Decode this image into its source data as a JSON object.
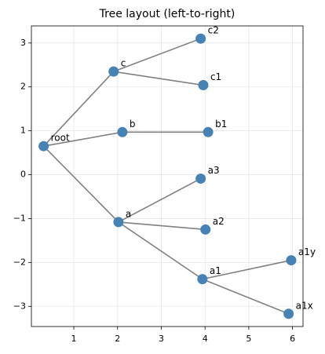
{
  "chart_data": {
    "type": "scatter",
    "title": "Tree layout (left-to-right)",
    "labels": [
      "root",
      "c",
      "c2",
      "c1",
      "b",
      "b1",
      "a3",
      "a",
      "a2",
      "a1",
      "a1y",
      "a1x"
    ],
    "x": [
      0.31,
      1.91,
      3.9,
      3.96,
      2.11,
      4.07,
      3.9,
      2.02,
      4.01,
      3.94,
      5.97,
      5.91
    ],
    "values": [
      0.65,
      2.35,
      3.1,
      2.04,
      0.97,
      0.97,
      -0.09,
      -1.08,
      -1.25,
      -2.38,
      -1.95,
      -3.17
    ],
    "edges": [
      [
        "root",
        "c"
      ],
      [
        "root",
        "b"
      ],
      [
        "root",
        "a"
      ],
      [
        "c",
        "c2"
      ],
      [
        "c",
        "c1"
      ],
      [
        "b",
        "b1"
      ],
      [
        "a",
        "a3"
      ],
      [
        "a",
        "a2"
      ],
      [
        "a",
        "a1"
      ],
      [
        "a1",
        "a1y"
      ],
      [
        "a1",
        "a1x"
      ]
    ],
    "color": "#4682b4",
    "edge_color": "#808080",
    "xlim": [
      0.03,
      6.24
    ],
    "ylim": [
      -3.46,
      3.39
    ],
    "xticks": [
      1,
      2,
      3,
      4,
      5,
      6
    ],
    "yticks": [
      {
        "value": -3,
        "label": "−3"
      },
      {
        "value": -2,
        "label": "−2"
      },
      {
        "value": -1,
        "label": "−1"
      },
      0,
      1,
      2,
      3
    ],
    "grid": true
  }
}
